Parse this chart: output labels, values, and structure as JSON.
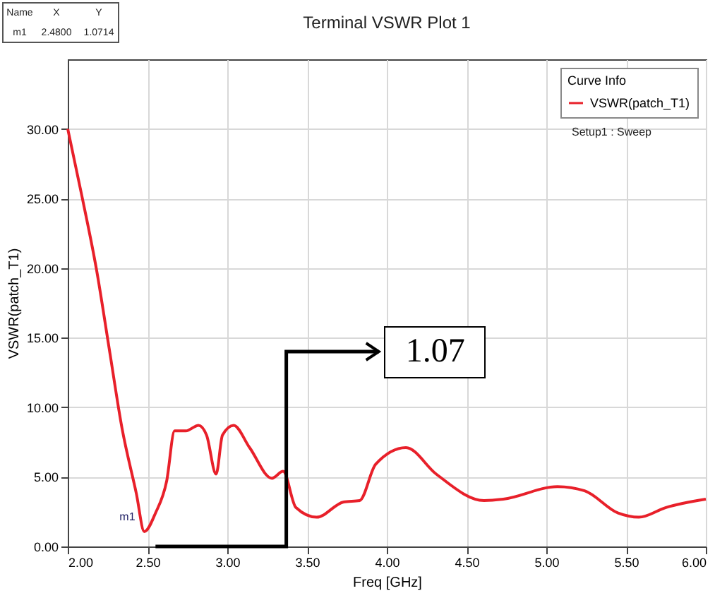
{
  "chart_data": {
    "type": "line",
    "title": "Terminal VSWR Plot 1",
    "xlabel": "Freq [GHz]",
    "ylabel": "VSWR(patch_T1)",
    "legend_title": "Curve Info",
    "legend": "top right",
    "grid": true,
    "line_style": "solid",
    "marker": "none",
    "xlim": [
      2,
      6
    ],
    "xticks": [
      {
        "value": 2,
        "label": "2.00"
      },
      {
        "value": 2.5,
        "label": "2.50"
      },
      {
        "value": 3,
        "label": "3.00"
      },
      {
        "value": 3.5,
        "label": "3.50"
      },
      {
        "value": 4,
        "label": "4.00"
      },
      {
        "value": 4.5,
        "label": "4.50"
      },
      {
        "value": 5,
        "label": "5.00"
      },
      {
        "value": 5.5,
        "label": "5.50"
      },
      {
        "value": 6,
        "label": "6.00"
      }
    ],
    "ylim": [
      0,
      35
    ],
    "yticks": [
      {
        "value": 0,
        "label": "0.00"
      },
      {
        "value": 5,
        "label": "5.00"
      },
      {
        "value": 10,
        "label": "10.00"
      },
      {
        "value": 15,
        "label": "15.00"
      },
      {
        "value": 20,
        "label": "20.00"
      },
      {
        "value": 25,
        "label": "25.00"
      },
      {
        "value": 30,
        "label": "30.00"
      }
    ],
    "x": [
      2.0,
      2.09,
      2.18,
      2.26,
      2.34,
      2.43,
      2.48,
      2.55,
      2.62,
      2.67,
      2.74,
      2.82,
      2.87,
      2.93,
      2.97,
      3.04,
      3.14,
      3.28,
      3.35,
      3.43,
      3.56,
      3.73,
      3.83,
      3.93,
      4.12,
      4.31,
      4.61,
      4.73,
      5.07,
      5.24,
      5.45,
      5.58,
      5.75,
      6.0
    ],
    "series": [
      {
        "name": "VSWR(patch_T1)",
        "color": "#e8202a",
        "values": [
          30,
          25.1,
          19.9,
          14.2,
          8.5,
          3.8,
          1.07,
          2.4,
          4.7,
          8.3,
          8.3,
          8.7,
          8.0,
          5.2,
          8.0,
          8.7,
          7.1,
          4.9,
          5.4,
          2.8,
          2.1,
          3.2,
          3.3,
          5.9,
          7.1,
          5.2,
          3.3,
          3.4,
          4.3,
          4.0,
          2.4,
          2.1,
          2.8,
          3.4
        ]
      }
    ],
    "annotations": [
      "Name",
      "X",
      "Y",
      "m1",
      "2.4800",
      "1.0714",
      "Setup1 : Sweep",
      "1.07",
      {
        "text": "m1",
        "x": 2.48,
        "y": 1.07
      }
    ]
  }
}
